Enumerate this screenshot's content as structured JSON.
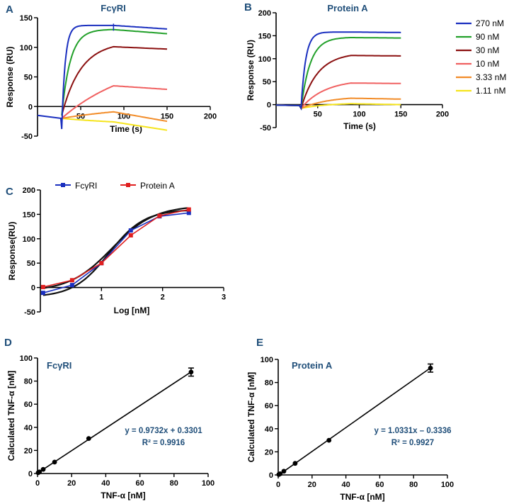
{
  "chart_data": [
    {
      "panel": "A",
      "type": "line",
      "title": "FcγRI",
      "xlabel": "Time (s)",
      "ylabel": "Response (RU)",
      "xlim": [
        0,
        200
      ],
      "ylim": [
        -50,
        150
      ],
      "xticks": [
        50,
        100,
        150,
        200
      ],
      "yticks": [
        -50,
        0,
        50,
        100,
        150
      ],
      "series": [
        {
          "name": "270 nM",
          "color": "#1a2fbf",
          "baseline": [
            [
              0,
              -15
            ],
            [
              28,
              -20
            ]
          ],
          "dip": -40,
          "plateau": 137,
          "end": 131,
          "rate": 0.25
        },
        {
          "name": "90 nM",
          "color": "#22a02a",
          "plateau": 130,
          "end": 123,
          "rate": 0.1,
          "baseline": [
            [
              28,
              -10
            ]
          ]
        },
        {
          "name": "30 nM",
          "color": "#8b1010",
          "plateau": 101,
          "end": 97,
          "rate": 0.045,
          "baseline": [
            [
              28,
              -12
            ]
          ]
        },
        {
          "name": "10 nM",
          "color": "#f06060",
          "start": -20,
          "plateau": 35,
          "end": 29,
          "rate": 0.012,
          "baseline": [
            [
              28,
              -20
            ]
          ]
        },
        {
          "name": "3.33 nM",
          "color": "#f28c28",
          "start": -20,
          "plateau": -9,
          "end": -25,
          "rate": 0.01,
          "baseline": [
            [
              28,
              -20
            ]
          ]
        },
        {
          "name": "1.11 nM",
          "color": "#f5e41c",
          "start": -20,
          "plateau": -26,
          "end": -40,
          "rate": 0.01,
          "baseline": [
            [
              28,
              -20
            ]
          ]
        }
      ]
    },
    {
      "panel": "B",
      "type": "line",
      "title": "Protein A",
      "xlabel": "Time (s)",
      "ylabel": "Response (RU)",
      "xlim": [
        0,
        200
      ],
      "ylim": [
        -50,
        200
      ],
      "xticks": [
        50,
        100,
        150,
        200
      ],
      "yticks": [
        -50,
        0,
        50,
        100,
        150,
        200
      ],
      "series": [
        {
          "name": "270 nM",
          "color": "#1a2fbf",
          "plateau": 158,
          "end": 157,
          "rate": 0.18
        },
        {
          "name": "90 nM",
          "color": "#22a02a",
          "plateau": 146,
          "end": 145,
          "rate": 0.09
        },
        {
          "name": "30 nM",
          "color": "#8b1010",
          "plateau": 107,
          "end": 106,
          "rate": 0.05
        },
        {
          "name": "10 nM",
          "color": "#f06060",
          "plateau": 47,
          "end": 46,
          "rate": 0.035
        },
        {
          "name": "3.33 nM",
          "color": "#f28c28",
          "plateau": 14,
          "end": 12,
          "rate": 0.03
        },
        {
          "name": "1.11 nM",
          "color": "#f5e41c",
          "plateau": 2,
          "end": 0,
          "rate": 0.03
        }
      ]
    },
    {
      "panel": "C",
      "type": "line",
      "xlabel": "Log [nM]",
      "ylabel": "Response(RU)",
      "xlim": [
        0,
        3
      ],
      "ylim": [
        -50,
        200
      ],
      "xticks": [
        1,
        2,
        3
      ],
      "yticks": [
        -50,
        0,
        50,
        100,
        150,
        200
      ],
      "series": [
        {
          "name": "FcγRI",
          "color": "#1a2fbf",
          "x": [
            0.045,
            0.52,
            1.0,
            1.48,
            1.95,
            2.43
          ],
          "values": [
            -11,
            5,
            50,
            117,
            146,
            153
          ]
        },
        {
          "name": "Protein A",
          "color": "#e02020",
          "x": [
            0.045,
            0.52,
            1.0,
            1.48,
            1.95,
            2.43
          ],
          "values": [
            1,
            15,
            50,
            107,
            147,
            160
          ]
        }
      ]
    },
    {
      "panel": "D",
      "type": "scatter",
      "title": "FcγRI",
      "xlabel": "TNF-α [nM]",
      "ylabel": "Calculated TNF-α [nM]",
      "xlim": [
        0,
        100
      ],
      "ylim": [
        0,
        100
      ],
      "xticks": [
        0,
        20,
        40,
        60,
        80,
        100
      ],
      "yticks": [
        0,
        20,
        40,
        60,
        80,
        100
      ],
      "x": [
        0.37,
        1.11,
        3.33,
        10,
        30,
        90
      ],
      "values": [
        0.7,
        1.4,
        3.6,
        9.9,
        30.3,
        87.8
      ],
      "error": [
        0,
        0,
        0,
        0,
        0,
        3.5
      ],
      "fit": {
        "slope": 0.9732,
        "intercept": 0.3301
      },
      "equation": "y = 0.9732x + 0.3301",
      "r2": "R² = 0.9916"
    },
    {
      "panel": "E",
      "type": "scatter",
      "title": "Protein A",
      "xlabel": "TNF-α [nM]",
      "ylabel": "Calculated TNF-α [nM]",
      "xlim": [
        0,
        100
      ],
      "ylim": [
        0,
        100
      ],
      "xticks": [
        0,
        20,
        40,
        60,
        80,
        100
      ],
      "yticks": [
        0,
        20,
        40,
        60,
        80,
        100
      ],
      "x": [
        0.37,
        1.11,
        3.33,
        10,
        30,
        90
      ],
      "values": [
        0.4,
        1.0,
        3.2,
        10.0,
        30.0,
        92.5
      ],
      "error": [
        0,
        0,
        0,
        0,
        0,
        3.5
      ],
      "fit": {
        "slope": 1.0331,
        "intercept": -0.3336
      },
      "equation": "y = 1.0331x – 0.3336",
      "r2": "R² = 0.9927"
    }
  ],
  "panel_labels": [
    "A",
    "B",
    "C",
    "D",
    "E"
  ]
}
